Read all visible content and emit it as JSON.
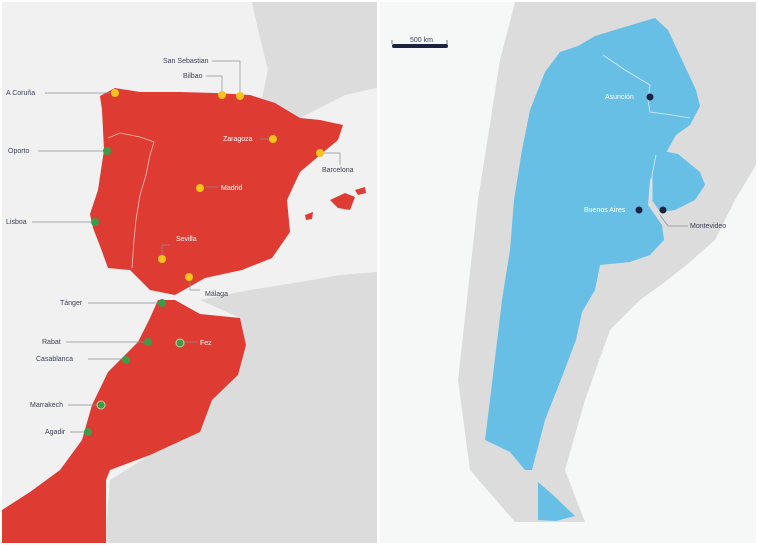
{
  "left_map": {
    "colors": {
      "sea": "#f1f1f1",
      "land": "#dcdcdc",
      "highlight": "#de3b33",
      "city_major": "#f6c21b",
      "city_minor": "#3f9a47"
    },
    "cities": [
      {
        "name": "A Coruña",
        "marker": "yellow"
      },
      {
        "name": "San Sebastian",
        "marker": "yellow"
      },
      {
        "name": "Bilbao",
        "marker": "yellow"
      },
      {
        "name": "Zaragoza",
        "marker": "yellow"
      },
      {
        "name": "Barcelona",
        "marker": "yellow"
      },
      {
        "name": "Madrid",
        "marker": "yellow"
      },
      {
        "name": "Sevilla",
        "marker": "yellow"
      },
      {
        "name": "Málaga",
        "marker": "yellow"
      },
      {
        "name": "Oporto",
        "marker": "green"
      },
      {
        "name": "Lisboa",
        "marker": "green"
      },
      {
        "name": "Tánger",
        "marker": "green"
      },
      {
        "name": "Rabat",
        "marker": "green"
      },
      {
        "name": "Fez",
        "marker": "green"
      },
      {
        "name": "Casablanca",
        "marker": "green"
      },
      {
        "name": "Marrakech",
        "marker": "green"
      },
      {
        "name": "Agadir",
        "marker": "green"
      }
    ]
  },
  "right_map": {
    "colors": {
      "sea": "#f6f8f8",
      "land": "#dcdcdc",
      "highlight": "#68bfe6",
      "city": "#1b2340"
    },
    "scale_bar": "500 km",
    "cities": [
      {
        "name": "Asunción"
      },
      {
        "name": "Buenos Aires"
      },
      {
        "name": "Montevideo"
      }
    ]
  }
}
